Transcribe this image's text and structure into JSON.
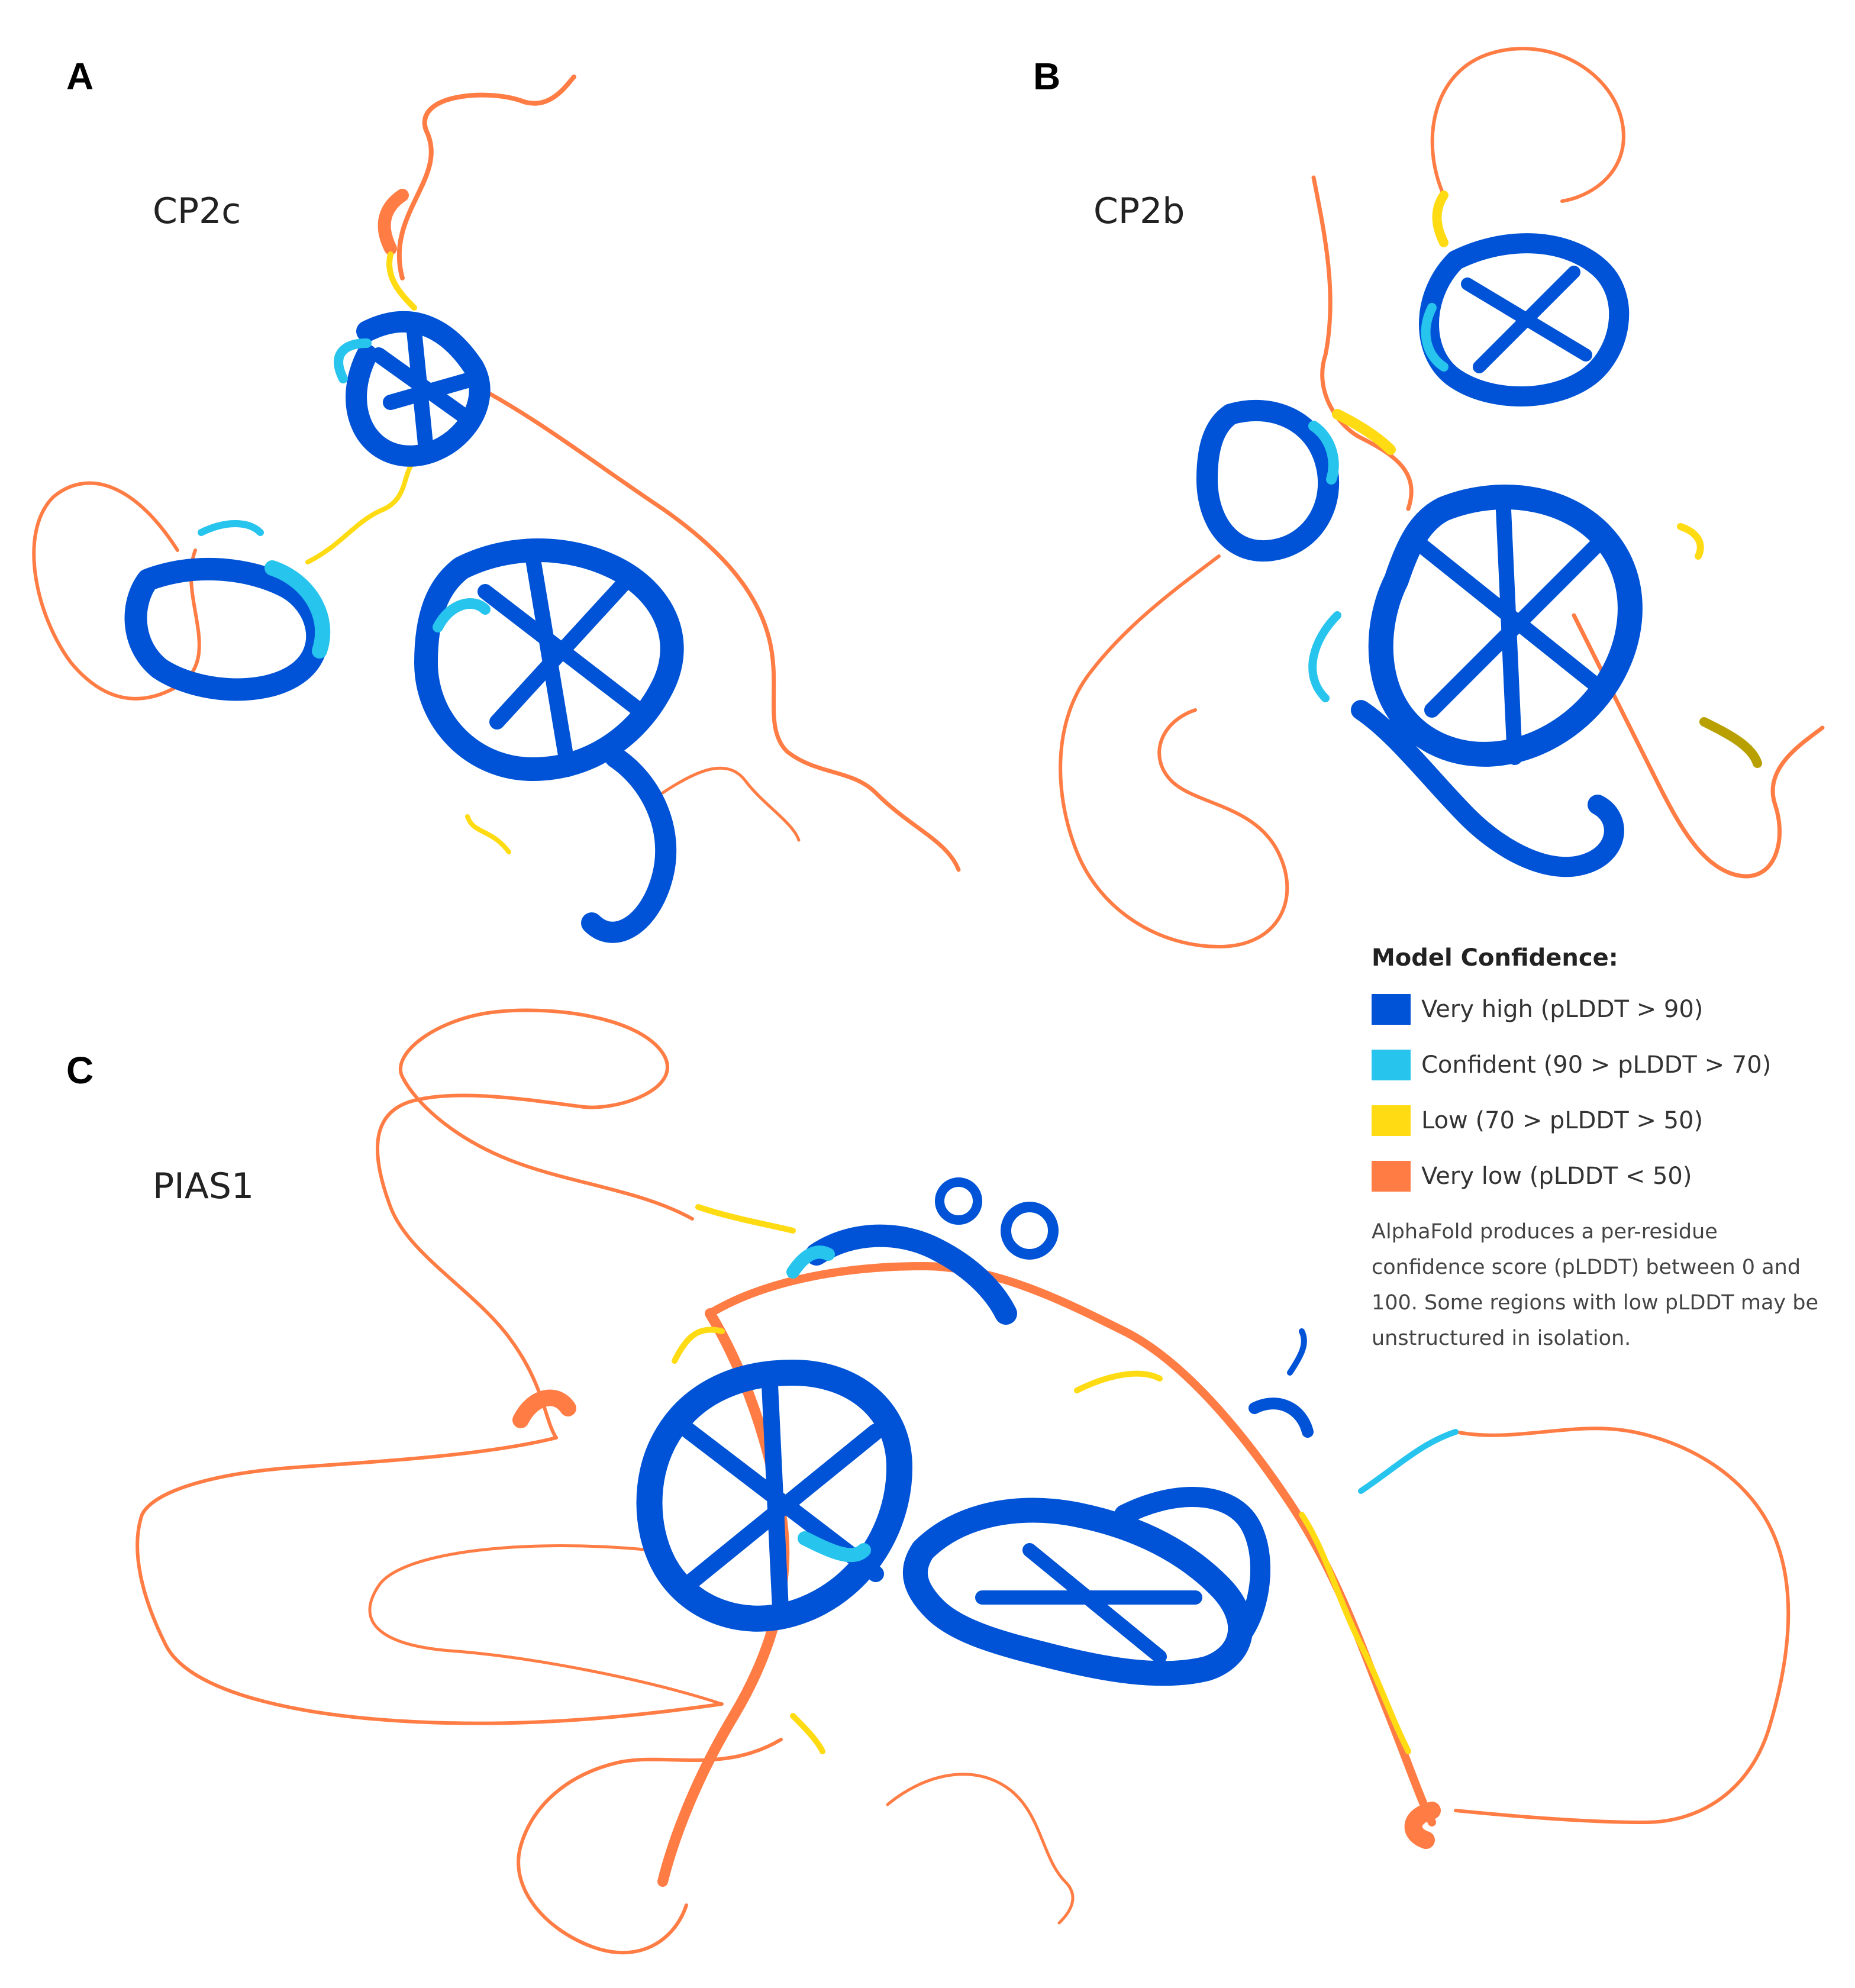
{
  "panels": [
    {
      "letter": "A",
      "protein": "CP2c"
    },
    {
      "letter": "B",
      "protein": "CP2b"
    },
    {
      "letter": "C",
      "protein": "PIAS1"
    }
  ],
  "legend": {
    "title": "Model Confidence:",
    "items": [
      {
        "label": "Very high (pLDDT > 90)",
        "color": "#0053d6"
      },
      {
        "label": "Confident (90 > pLDDT > 70)",
        "color": "#27c4ee"
      },
      {
        "label": "Low (70 > pLDDT > 50)",
        "color": "#ffdb13"
      },
      {
        "label": "Very low (pLDDT < 50)",
        "color": "#ff7d45"
      }
    ],
    "note": "AlphaFold produces a per-residue confidence score (pLDDT) between 0 and 100. Some regions with low pLDDT may be unstructured in isolation."
  }
}
